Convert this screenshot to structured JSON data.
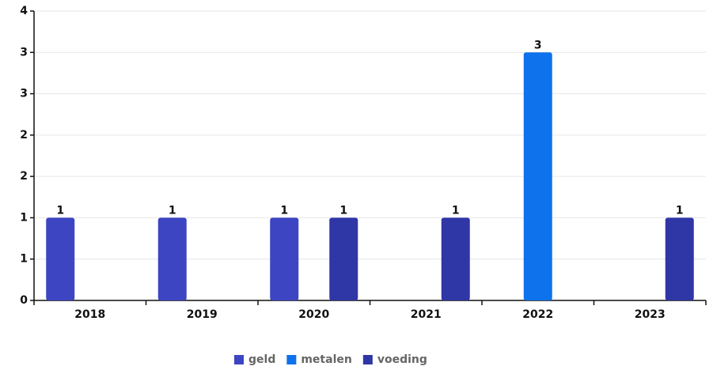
{
  "chart_data": {
    "type": "bar",
    "categories": [
      "2018",
      "2019",
      "2020",
      "2021",
      "2022",
      "2023"
    ],
    "series": [
      {
        "name": "geld",
        "color": "#3d45c2",
        "values": [
          1,
          1,
          1,
          null,
          null,
          null
        ]
      },
      {
        "name": "metalen",
        "color": "#0d72ec",
        "values": [
          null,
          null,
          null,
          null,
          3,
          null
        ]
      },
      {
        "name": "voeding",
        "color": "#2f36a6",
        "values": [
          null,
          null,
          1,
          1,
          null,
          1
        ]
      }
    ],
    "ylim": [
      0,
      3.5
    ],
    "yticks": [
      0,
      {
        "value": 0.5,
        "label": "1"
      },
      1,
      {
        "value": 1.5,
        "label": "2"
      },
      2,
      {
        "value": 2.5,
        "label": "3"
      },
      3,
      {
        "value": 3.5,
        "label": "4"
      }
    ],
    "grid": true,
    "legend": "bottom"
  }
}
